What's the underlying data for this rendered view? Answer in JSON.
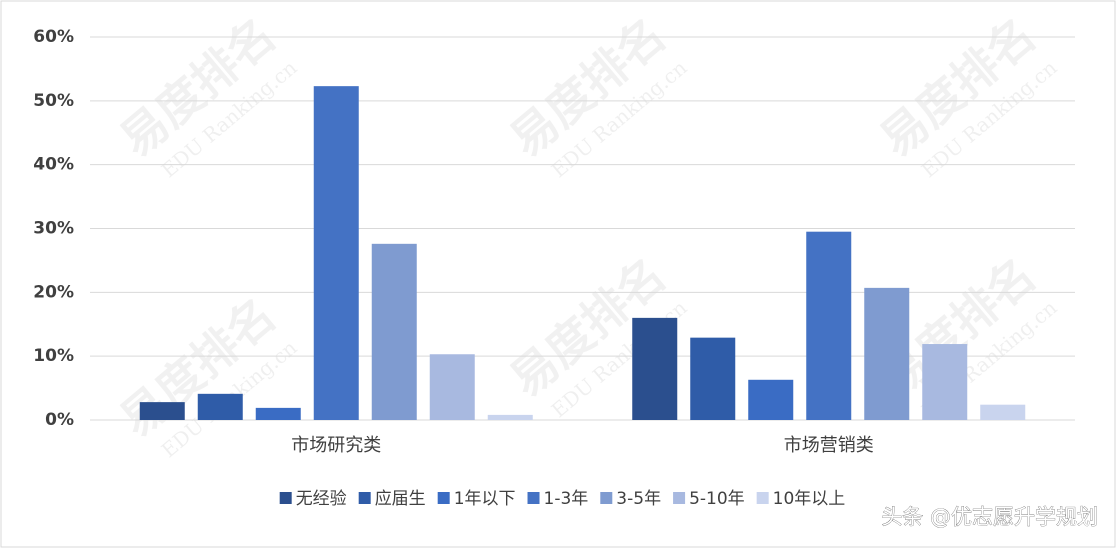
{
  "chart_data": {
    "type": "bar",
    "categories": [
      "市场研究类",
      "市场营销类"
    ],
    "series": [
      {
        "name": "无经验",
        "color": "#2b4f8e",
        "values": [
          2.8,
          16.0
        ]
      },
      {
        "name": "应届生",
        "color": "#2f5ca8",
        "values": [
          4.1,
          12.9
        ]
      },
      {
        "name": "1年以下",
        "color": "#3a6cc4",
        "values": [
          1.9,
          6.3
        ]
      },
      {
        "name": "1-3年",
        "color": "#4472c4",
        "values": [
          52.3,
          29.5
        ]
      },
      {
        "name": "3-5年",
        "color": "#7f9bd0",
        "values": [
          27.6,
          20.7
        ]
      },
      {
        "name": "5-10年",
        "color": "#a8b9e0",
        "values": [
          10.3,
          11.9
        ]
      },
      {
        "name": "10年以上",
        "color": "#c9d4ee",
        "values": [
          0.8,
          2.4
        ]
      }
    ],
    "ylim": [
      0,
      60
    ],
    "yticks": [
      {
        "value": 0,
        "label": "0%"
      },
      {
        "value": 10,
        "label": "10%"
      },
      {
        "value": 20,
        "label": "20%"
      },
      {
        "value": 30,
        "label": "30%"
      },
      {
        "value": 40,
        "label": "40%"
      },
      {
        "value": 50,
        "label": "50%"
      },
      {
        "value": 60,
        "label": "60%"
      }
    ],
    "grid": true,
    "legend": "bottom",
    "watermark": "易度排名",
    "watermark_sub": "EDU Ranking.cn",
    "credit": "头条 @优志愿升学规划"
  }
}
